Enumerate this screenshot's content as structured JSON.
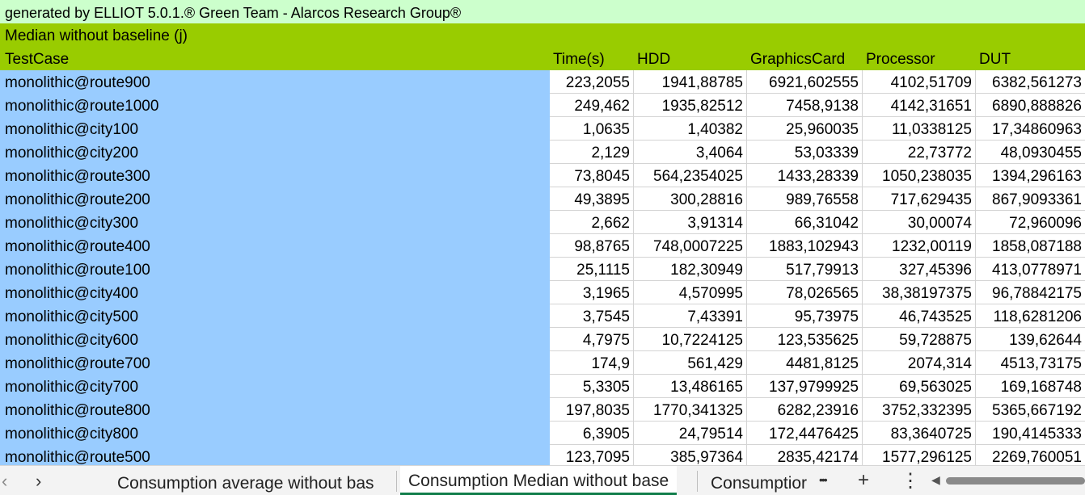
{
  "sheet": {
    "generated_by": "generated by ELLIOT 5.0.1.® Green Team - Alarcos Research Group®",
    "subtitle": "Median without baseline (j)",
    "headers": [
      "TestCase",
      "Time(s)",
      "HDD",
      "GraphicsCard",
      "Processor",
      "DUT"
    ],
    "rows": [
      [
        "monolithic@route900",
        "223,2055",
        "1941,88785",
        "6921,602555",
        "4102,51709",
        "6382,561273"
      ],
      [
        "monolithic@route1000",
        "249,462",
        "1935,82512",
        "7458,9138",
        "4142,31651",
        "6890,888826"
      ],
      [
        "monolithic@city100",
        "1,0635",
        "1,40382",
        "25,960035",
        "11,0338125",
        "17,34860963"
      ],
      [
        "monolithic@city200",
        "2,129",
        "3,4064",
        "53,03339",
        "22,73772",
        "48,0930455"
      ],
      [
        "monolithic@route300",
        "73,8045",
        "564,2354025",
        "1433,28339",
        "1050,238035",
        "1394,296163"
      ],
      [
        "monolithic@route200",
        "49,3895",
        "300,28816",
        "989,76558",
        "717,629435",
        "867,9093361"
      ],
      [
        "monolithic@city300",
        "2,662",
        "3,91314",
        "66,31042",
        "30,00074",
        "72,960096"
      ],
      [
        "monolithic@route400",
        "98,8765",
        "748,0007225",
        "1883,102943",
        "1232,00119",
        "1858,087188"
      ],
      [
        "monolithic@route100",
        "25,1115",
        "182,30949",
        "517,79913",
        "327,45396",
        "413,0778971"
      ],
      [
        "monolithic@city400",
        "3,1965",
        "4,570995",
        "78,026565",
        "38,38197375",
        "96,78842175"
      ],
      [
        "monolithic@city500",
        "3,7545",
        "7,43391",
        "95,73975",
        "46,743525",
        "118,6281206"
      ],
      [
        "monolithic@city600",
        "4,7975",
        "10,7224125",
        "123,535625",
        "59,728875",
        "139,62644"
      ],
      [
        "monolithic@route700",
        "174,9",
        "561,429",
        "4481,8125",
        "2074,314",
        "4513,73175"
      ],
      [
        "monolithic@city700",
        "5,3305",
        "13,486165",
        "137,9799925",
        "69,563025",
        "169,168748"
      ],
      [
        "monolithic@route800",
        "197,8035",
        "1770,341325",
        "6282,23916",
        "3752,332395",
        "5365,667192"
      ],
      [
        "monolithic@city800",
        "6,3905",
        "24,79514",
        "172,4476425",
        "83,3640725",
        "190,4145333"
      ],
      [
        "monolithic@route500",
        "123,7095",
        "385,97364",
        "2835,42174",
        "1577,296125",
        "2269,760051"
      ]
    ]
  },
  "tabs": {
    "items": [
      "Consumption average without bas",
      "Consumption Median without base",
      "Consumptior"
    ],
    "active_index": 1
  },
  "icons": {
    "prev": "‹",
    "next": "›",
    "more": "•••",
    "add": "+",
    "options": "⋮",
    "scroll_left": "◀"
  },
  "colors": {
    "generated_row": "#ccffcc",
    "header_rows": "#99cc00",
    "testcase_column": "#99ccff",
    "active_tab_underline": "#117d4a"
  }
}
